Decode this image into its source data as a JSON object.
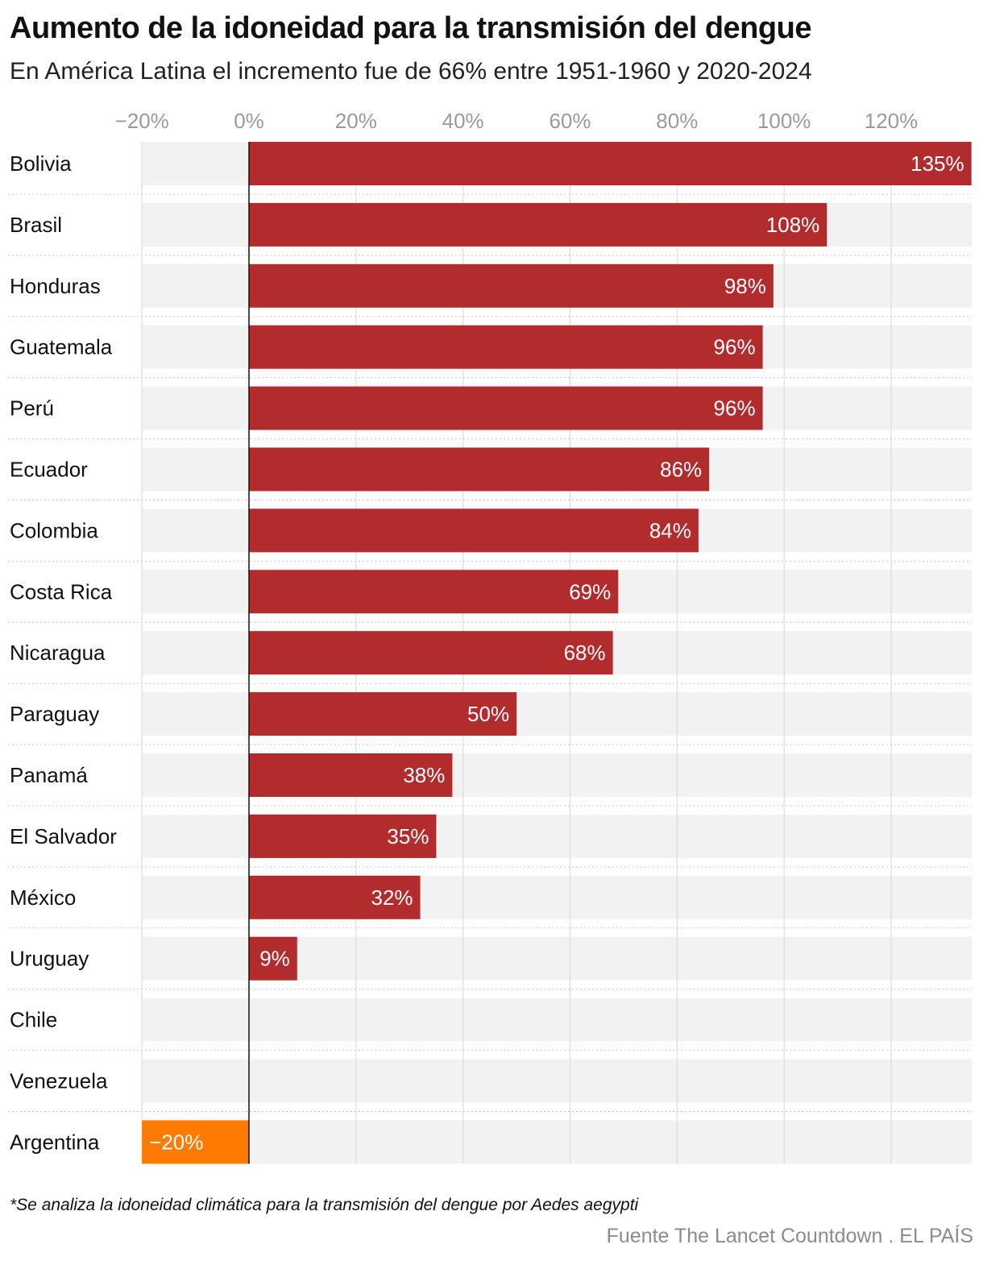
{
  "header": {
    "title": "Aumento de la idoneidad para la transmisión del dengue",
    "subtitle": "En América Latina el incremento fue de 66% entre 1951-1960 y 2020-2024"
  },
  "footer": {
    "note": "*Se analiza la idoneidad climática para la transmisión del dengue por Aedes aegypti",
    "source": "Fuente The Lancet Countdown . EL PAÍS"
  },
  "colors": {
    "positive": "#b22b2d",
    "negative": "#ff7a00",
    "row_background": "#f2f2f2",
    "gridline": "#d6d6d6",
    "tick_label": "#9a9a9a"
  },
  "chart_data": {
    "type": "bar",
    "orientation": "horizontal",
    "categories": [
      "Bolivia",
      "Brasil",
      "Honduras",
      "Guatemala",
      "Perú",
      "Ecuador",
      "Colombia",
      "Costa Rica",
      "Nicaragua",
      "Paraguay",
      "Panamá",
      "El Salvador",
      "México",
      "Uruguay",
      "Chile",
      "Venezuela",
      "Argentina"
    ],
    "values": [
      135,
      108,
      98,
      96,
      96,
      86,
      84,
      69,
      68,
      50,
      38,
      35,
      32,
      9,
      0,
      0,
      -20
    ],
    "value_labels": [
      "135%",
      "108%",
      "98%",
      "96%",
      "96%",
      "86%",
      "84%",
      "69%",
      "68%",
      "50%",
      "38%",
      "35%",
      "32%",
      "9%",
      "",
      "",
      "−20%"
    ],
    "xlim": [
      -20,
      135
    ],
    "x_ticks": [
      -20,
      0,
      20,
      40,
      60,
      80,
      100,
      120
    ],
    "x_tick_labels": [
      "−20%",
      "0%",
      "20%",
      "40%",
      "60%",
      "80%",
      "100%",
      "120%"
    ],
    "tick_position": "top",
    "grid": true
  }
}
